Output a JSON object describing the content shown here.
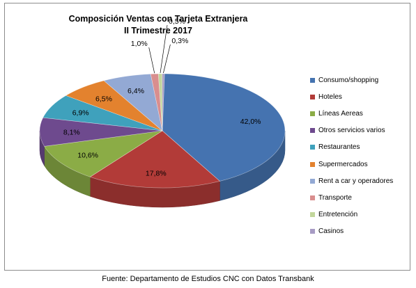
{
  "chart_data": {
    "type": "pie",
    "title_line1": "Composición Ventas con Tarjeta Extranjera",
    "title_line2": "II Trimestre 2017",
    "slices": [
      {
        "label": "Consumo/shopping",
        "value": 42.0,
        "display": "42,0%",
        "color": "#4573b0"
      },
      {
        "label": "Hoteles",
        "value": 17.8,
        "display": "17,8%",
        "color": "#b23b38"
      },
      {
        "label": "Líneas Aereas",
        "value": 10.6,
        "display": "10,6%",
        "color": "#8bac46"
      },
      {
        "label": "Otros servicios varios",
        "value": 8.1,
        "display": "8,1%",
        "color": "#6e4a8e"
      },
      {
        "label": "Restaurantes",
        "value": 6.9,
        "display": "6,9%",
        "color": "#3fa1bc"
      },
      {
        "label": "Supermercados",
        "value": 6.5,
        "display": "6,5%",
        "color": "#e3822e"
      },
      {
        "label": "Rent a car y operadores",
        "value": 6.4,
        "display": "6,4%",
        "color": "#93a9d4"
      },
      {
        "label": "Transporte",
        "value": 1.0,
        "display": "1,0%",
        "color": "#d98e8e"
      },
      {
        "label": "Entretención",
        "value": 0.5,
        "display": "0,5%",
        "color": "#c2d69b"
      },
      {
        "label": "Casinos",
        "value": 0.3,
        "display": "0,3%",
        "color": "#a79bc4"
      }
    ],
    "legend_position": "right"
  },
  "source": "Fuente: Departamento de Estudios CNC con Datos Transbank"
}
